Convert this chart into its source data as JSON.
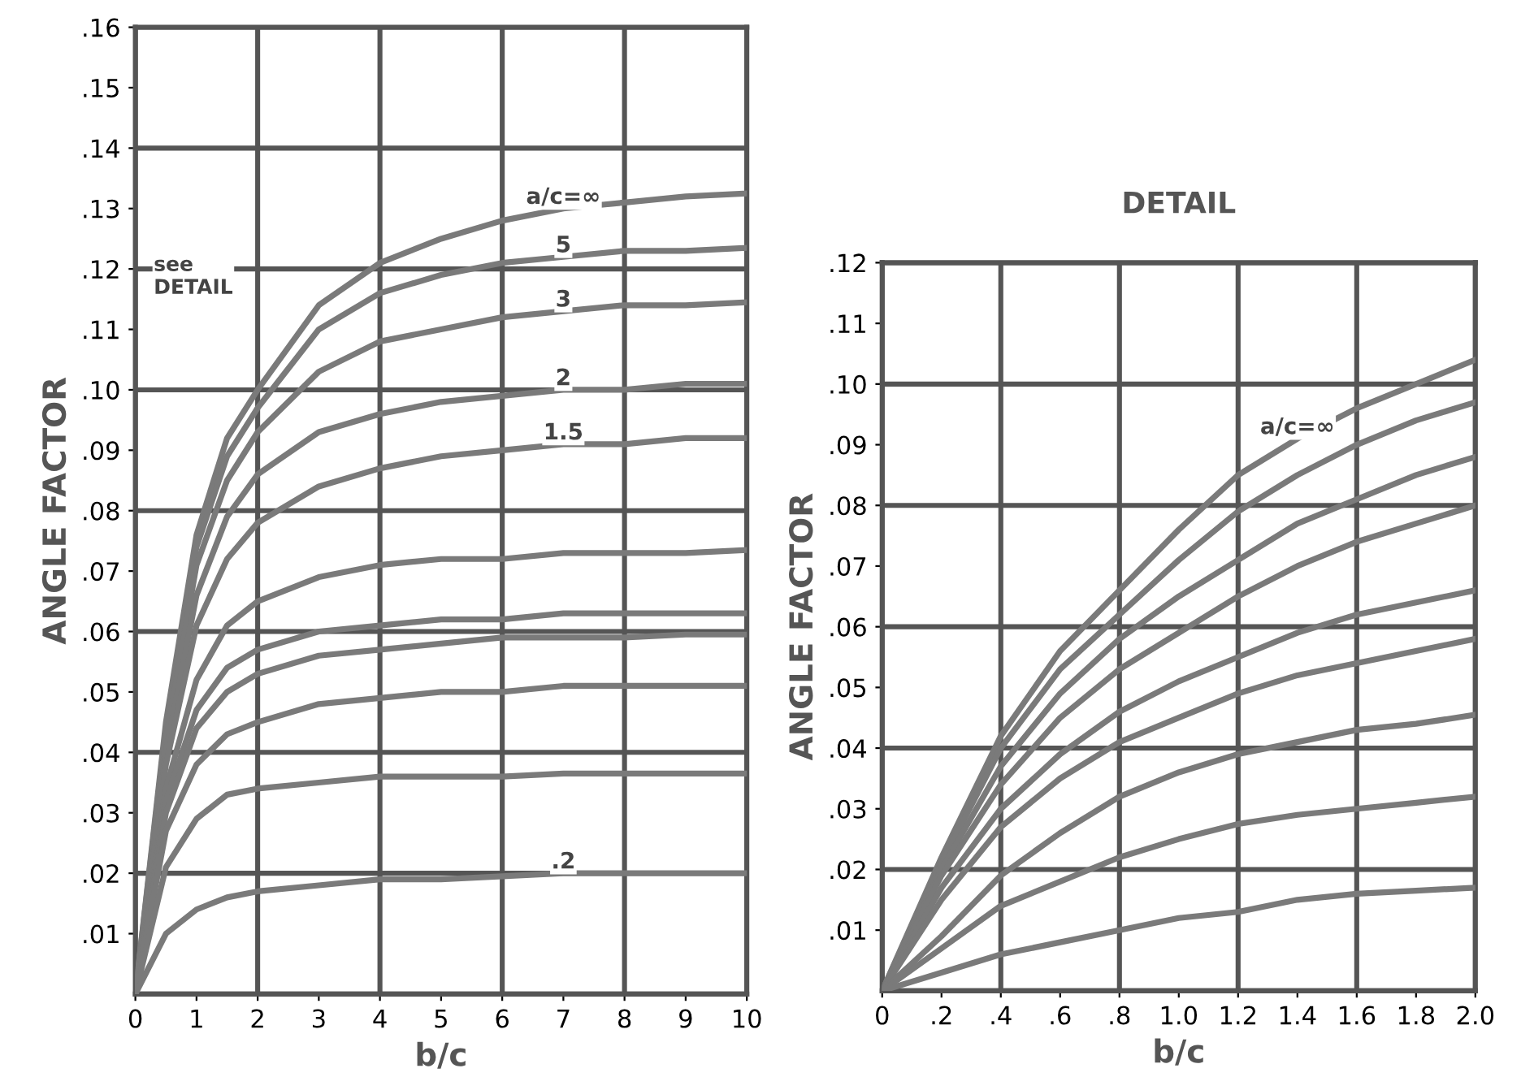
{
  "chart_data": [
    {
      "type": "line",
      "xlabel": "b/c",
      "ylabel": "ANGLE FACTOR",
      "x": [
        0,
        0.5,
        1,
        1.5,
        2,
        3,
        4,
        5,
        6,
        7,
        8,
        9,
        10
      ],
      "xlim": [
        0,
        10
      ],
      "ylim": [
        0,
        0.16
      ],
      "xticks": [
        0,
        1,
        2,
        3,
        4,
        5,
        6,
        7,
        8,
        9,
        10
      ],
      "yticks": [
        {
          "value": 0.01,
          "label": ".01"
        },
        {
          "value": 0.02,
          "label": ".02"
        },
        {
          "value": 0.03,
          "label": ".03"
        },
        {
          "value": 0.04,
          "label": ".04"
        },
        {
          "value": 0.05,
          "label": ".05"
        },
        {
          "value": 0.06,
          "label": ".06"
        },
        {
          "value": 0.07,
          "label": ".07"
        },
        {
          "value": 0.08,
          "label": ".08"
        },
        {
          "value": 0.09,
          "label": ".09"
        },
        {
          "value": 0.1,
          "label": ".10"
        },
        {
          "value": 0.11,
          "label": ".11"
        },
        {
          "value": 0.12,
          "label": ".12"
        },
        {
          "value": 0.13,
          "label": ".13"
        },
        {
          "value": 0.14,
          "label": ".14"
        },
        {
          "value": 0.15,
          "label": ".15"
        },
        {
          "value": 0.16,
          "label": ".16"
        }
      ],
      "grid": true,
      "line_style": "solid",
      "marker": "none",
      "series": [
        {
          "name": "a/c=∞",
          "color": "#7a7a7a",
          "values": [
            0,
            0.045,
            0.076,
            0.092,
            0.1,
            0.114,
            0.121,
            0.125,
            0.128,
            0.13,
            0.131,
            0.132,
            0.1325
          ]
        },
        {
          "name": "5",
          "color": "#7a7a7a",
          "values": [
            0,
            0.044,
            0.074,
            0.089,
            0.097,
            0.11,
            0.116,
            0.119,
            0.121,
            0.122,
            0.123,
            0.123,
            0.1235
          ]
        },
        {
          "name": "3",
          "color": "#7a7a7a",
          "values": [
            0,
            0.042,
            0.071,
            0.085,
            0.093,
            0.103,
            0.108,
            0.11,
            0.112,
            0.113,
            0.114,
            0.114,
            0.1145
          ]
        },
        {
          "name": "2",
          "color": "#7a7a7a",
          "values": [
            0,
            0.04,
            0.066,
            0.079,
            0.086,
            0.093,
            0.096,
            0.098,
            0.099,
            0.1,
            0.1,
            0.101,
            0.101
          ]
        },
        {
          "name": "1.5",
          "color": "#7a7a7a",
          "values": [
            0,
            0.038,
            0.061,
            0.072,
            0.078,
            0.084,
            0.087,
            0.089,
            0.09,
            0.091,
            0.091,
            0.092,
            0.092
          ]
        },
        {
          "color": "#7a7a7a",
          "values": [
            0,
            0.034,
            0.052,
            0.061,
            0.065,
            0.069,
            0.071,
            0.072,
            0.072,
            0.073,
            0.073,
            0.073,
            0.0735
          ]
        },
        {
          "color": "#7a7a7a",
          "values": [
            0,
            0.032,
            0.047,
            0.054,
            0.057,
            0.06,
            0.061,
            0.062,
            0.062,
            0.063,
            0.063,
            0.063,
            0.063
          ]
        },
        {
          "color": "#7a7a7a",
          "values": [
            0,
            0.03,
            0.044,
            0.05,
            0.053,
            0.056,
            0.057,
            0.058,
            0.059,
            0.059,
            0.059,
            0.0595,
            0.0595
          ]
        },
        {
          "color": "#7a7a7a",
          "values": [
            0,
            0.027,
            0.038,
            0.043,
            0.045,
            0.048,
            0.049,
            0.05,
            0.05,
            0.051,
            0.051,
            0.051,
            0.051
          ]
        },
        {
          "color": "#7a7a7a",
          "values": [
            0,
            0.021,
            0.029,
            0.033,
            0.034,
            0.035,
            0.036,
            0.036,
            0.036,
            0.0365,
            0.0365,
            0.0365,
            0.0365
          ]
        },
        {
          "name": ".2",
          "color": "#7a7a7a",
          "values": [
            0,
            0.01,
            0.014,
            0.016,
            0.017,
            0.018,
            0.019,
            0.019,
            0.0195,
            0.02,
            0.02,
            0.02,
            0.02
          ]
        }
      ],
      "annotations": [
        "see\nDETAIL"
      ]
    },
    {
      "type": "line",
      "title": "DETAIL",
      "xlabel": "b/c",
      "ylabel": "ANGLE FACTOR",
      "x": [
        0,
        0.2,
        0.4,
        0.6,
        0.8,
        1.0,
        1.2,
        1.4,
        1.6,
        1.8,
        2.0
      ],
      "xlim": [
        0,
        2.0
      ],
      "ylim": [
        0,
        0.12
      ],
      "xticks": [
        0,
        {
          "value": 0.2,
          "label": ".2"
        },
        {
          "value": 0.4,
          "label": ".4"
        },
        {
          "value": 0.6,
          "label": ".6"
        },
        {
          "value": 0.8,
          "label": ".8"
        },
        {
          "value": 1.0,
          "label": "1.0"
        },
        {
          "value": 1.2,
          "label": "1.2"
        },
        {
          "value": 1.4,
          "label": "1.4"
        },
        {
          "value": 1.6,
          "label": "1.6"
        },
        {
          "value": 1.8,
          "label": "1.8"
        },
        {
          "value": 2.0,
          "label": "2.0"
        }
      ],
      "yticks": [
        {
          "value": 0.01,
          "label": ".01"
        },
        {
          "value": 0.02,
          "label": ".02"
        },
        {
          "value": 0.03,
          "label": ".03"
        },
        {
          "value": 0.04,
          "label": ".04"
        },
        {
          "value": 0.05,
          "label": ".05"
        },
        {
          "value": 0.06,
          "label": ".06"
        },
        {
          "value": 0.07,
          "label": ".07"
        },
        {
          "value": 0.08,
          "label": ".08"
        },
        {
          "value": 0.09,
          "label": ".09"
        },
        {
          "value": 0.1,
          "label": ".10"
        },
        {
          "value": 0.11,
          "label": ".11"
        },
        {
          "value": 0.12,
          "label": ".12"
        }
      ],
      "grid": true,
      "line_style": "solid",
      "marker": "none",
      "series": [
        {
          "name": "a/c=∞",
          "color": "#7a7a7a",
          "values": [
            0,
            0.022,
            0.042,
            0.056,
            0.066,
            0.076,
            0.085,
            0.091,
            0.096,
            0.1,
            0.104
          ]
        },
        {
          "color": "#7a7a7a",
          "values": [
            0,
            0.021,
            0.04,
            0.053,
            0.062,
            0.071,
            0.079,
            0.085,
            0.09,
            0.094,
            0.097
          ]
        },
        {
          "color": "#7a7a7a",
          "values": [
            0,
            0.02,
            0.037,
            0.049,
            0.058,
            0.065,
            0.071,
            0.077,
            0.081,
            0.085,
            0.088
          ]
        },
        {
          "color": "#7a7a7a",
          "values": [
            0,
            0.019,
            0.034,
            0.045,
            0.053,
            0.059,
            0.065,
            0.07,
            0.074,
            0.077,
            0.08
          ]
        },
        {
          "color": "#7a7a7a",
          "values": [
            0,
            0.017,
            0.03,
            0.039,
            0.046,
            0.051,
            0.055,
            0.059,
            0.062,
            0.064,
            0.066
          ]
        },
        {
          "color": "#7a7a7a",
          "values": [
            0,
            0.015,
            0.027,
            0.035,
            0.041,
            0.045,
            0.049,
            0.052,
            0.054,
            0.056,
            0.058
          ]
        },
        {
          "color": "#7a7a7a",
          "values": [
            0,
            0.009,
            0.019,
            0.026,
            0.032,
            0.036,
            0.039,
            0.041,
            0.043,
            0.044,
            0.0455
          ]
        },
        {
          "color": "#7a7a7a",
          "values": [
            0,
            0.007,
            0.014,
            0.018,
            0.022,
            0.025,
            0.0275,
            0.029,
            0.03,
            0.031,
            0.032
          ]
        },
        {
          "color": "#7a7a7a",
          "values": [
            0,
            0.003,
            0.006,
            0.008,
            0.01,
            0.012,
            0.013,
            0.015,
            0.016,
            0.0165,
            0.017
          ]
        }
      ]
    }
  ]
}
